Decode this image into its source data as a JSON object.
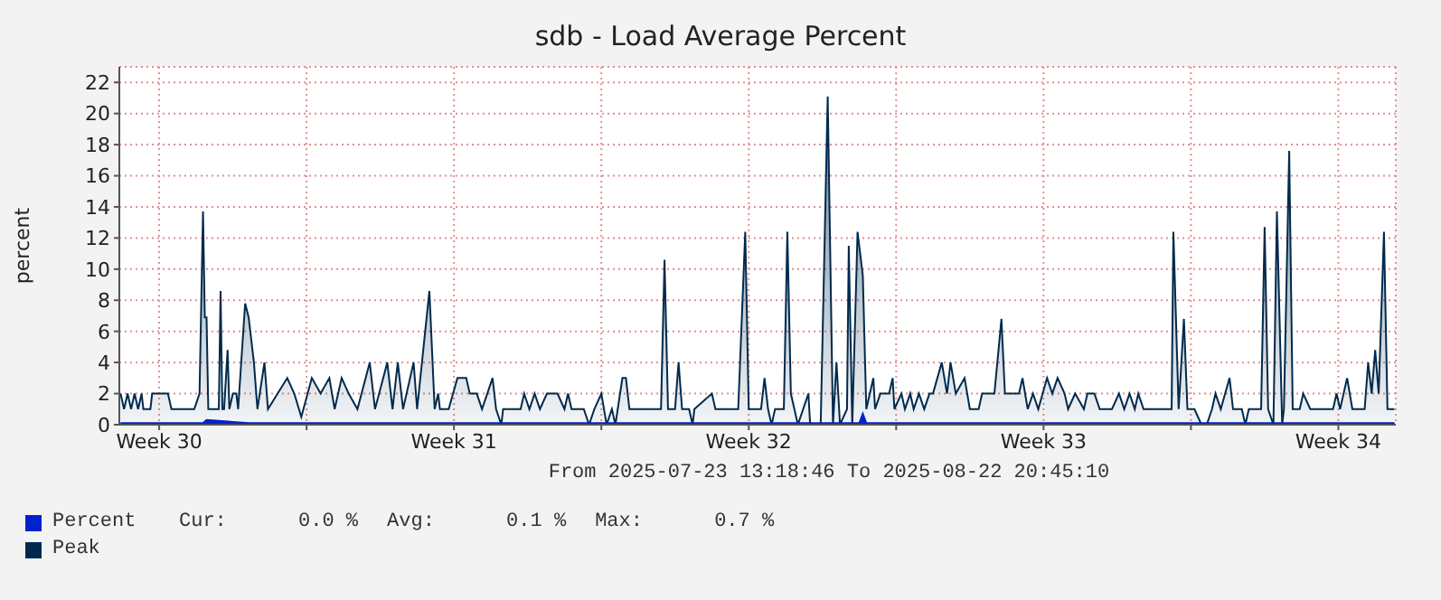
{
  "chart_data": {
    "type": "area",
    "title": "sdb - Load Average Percent",
    "ylabel": "percent",
    "xlabel": "From 2025-07-23 13:18:46 To 2025-08-22 20:45:10",
    "xlim": [
      "2025-07-23T13:18",
      "2025-08-22T20:45"
    ],
    "xticks": [
      {
        "value": "2025-07-24T12:00",
        "label": "Week 30"
      },
      {
        "value": "2025-07-28T00:00",
        "label": null
      },
      {
        "value": "2025-07-31T12:00",
        "label": "Week 31"
      },
      {
        "value": "2025-08-04T00:00",
        "label": null
      },
      {
        "value": "2025-08-07T12:00",
        "label": "Week 32"
      },
      {
        "value": "2025-08-11T00:00",
        "label": null
      },
      {
        "value": "2025-08-14T12:00",
        "label": "Week 33"
      },
      {
        "value": "2025-08-18T00:00",
        "label": null
      },
      {
        "value": "2025-08-21T12:00",
        "label": "Week 34"
      }
    ],
    "ylim": [
      0,
      23
    ],
    "yticks": [
      0,
      2,
      4,
      6,
      8,
      10,
      12,
      14,
      16,
      18,
      20,
      22
    ],
    "grid": true,
    "legend": "bottom",
    "annotations": [
      "Cur:      0.0 %",
      "Avg:      0.1 %",
      "Max:      0.7 %"
    ],
    "series": [
      {
        "name": "Percent",
        "color": "#0022cc",
        "x": [
          "2025-07-23T14:00",
          "2025-07-25T13:00",
          "2025-07-25T15:00",
          "2025-07-26T15:00",
          "2025-08-10T03:00",
          "2025-08-10T05:00",
          "2025-08-10T07:00",
          "2025-08-22T20:00"
        ],
        "values": [
          0.1,
          0.1,
          0.3,
          0.1,
          0.1,
          0.7,
          0.1,
          0.1
        ]
      },
      {
        "name": "Peak",
        "color": "#002a4d",
        "x": [
          "2025-07-23T14:00",
          "2025-07-23T16:00",
          "2025-07-23T18:00",
          "2025-07-23T20:00",
          "2025-07-23T22:00",
          "2025-07-24T00:00",
          "2025-07-24T02:00",
          "2025-07-24T03:00",
          "2025-07-24T07:00",
          "2025-07-24T08:00",
          "2025-07-24T17:00",
          "2025-07-24T19:00",
          "2025-07-25T08:00",
          "2025-07-25T11:00",
          "2025-07-25T13:00",
          "2025-07-25T14:00",
          "2025-07-25T15:00",
          "2025-07-25T16:00",
          "2025-07-25T22:00",
          "2025-07-25T23:00",
          "2025-07-26T00:00",
          "2025-07-26T01:00",
          "2025-07-26T03:00",
          "2025-07-26T04:00",
          "2025-07-26T06:00",
          "2025-07-26T08:00",
          "2025-07-26T09:00",
          "2025-07-26T13:00",
          "2025-07-26T15:00",
          "2025-07-26T18:00",
          "2025-07-26T20:00",
          "2025-07-27T00:00",
          "2025-07-27T02:00",
          "2025-07-27T13:00",
          "2025-07-27T17:00",
          "2025-07-27T21:00",
          "2025-07-28T03:00",
          "2025-07-28T08:00",
          "2025-07-28T13:00",
          "2025-07-28T16:00",
          "2025-07-28T20:00",
          "2025-07-29T00:00",
          "2025-07-29T05:00",
          "2025-07-29T12:00",
          "2025-07-29T15:00",
          "2025-07-29T22:00",
          "2025-07-30T01:00",
          "2025-07-30T04:00",
          "2025-07-30T07:00",
          "2025-07-30T13:00",
          "2025-07-30T15:00",
          "2025-07-30T22:00",
          "2025-07-31T01:00",
          "2025-07-31T03:00",
          "2025-07-31T04:00",
          "2025-07-31T09:00",
          "2025-07-31T14:00",
          "2025-07-31T19:00",
          "2025-07-31T21:00",
          "2025-08-01T01:00",
          "2025-08-01T04:00",
          "2025-08-01T10:00",
          "2025-08-01T12:00",
          "2025-08-01T15:00",
          "2025-08-01T16:00",
          "2025-08-02T02:00",
          "2025-08-02T04:00",
          "2025-08-02T07:00",
          "2025-08-02T10:00",
          "2025-08-02T13:00",
          "2025-08-02T17:00",
          "2025-08-02T23:00",
          "2025-08-03T03:00",
          "2025-08-03T05:00",
          "2025-08-03T07:00",
          "2025-08-03T14:00",
          "2025-08-03T17:00",
          "2025-08-03T20:00",
          "2025-08-04T00:00",
          "2025-08-04T03:00",
          "2025-08-04T06:00",
          "2025-08-04T08:00",
          "2025-08-04T12:00",
          "2025-08-04T14:00",
          "2025-08-04T16:00",
          "2025-08-05T10:00",
          "2025-08-05T12:00",
          "2025-08-05T14:00",
          "2025-08-05T18:00",
          "2025-08-05T20:00",
          "2025-08-05T22:00",
          "2025-08-06T02:00",
          "2025-08-06T04:00",
          "2025-08-06T05:00",
          "2025-08-06T15:00",
          "2025-08-06T17:00",
          "2025-08-07T06:00",
          "2025-08-07T10:00",
          "2025-08-07T12:00",
          "2025-08-07T19:00",
          "2025-08-07T21:00",
          "2025-08-07T23:00",
          "2025-08-08T01:00",
          "2025-08-08T03:00",
          "2025-08-08T08:00",
          "2025-08-08T10:00",
          "2025-08-08T12:00",
          "2025-08-08T14:00",
          "2025-08-08T16:00",
          "2025-08-08T19:00",
          "2025-08-08T22:00",
          "2025-08-08T23:00",
          "2025-08-09T05:00",
          "2025-08-09T09:00",
          "2025-08-09T12:00",
          "2025-08-09T14:00",
          "2025-08-09T16:00",
          "2025-08-09T20:00",
          "2025-08-09T21:00",
          "2025-08-09T23:00",
          "2025-08-10T02:00",
          "2025-08-10T05:00",
          "2025-08-10T07:00",
          "2025-08-10T11:00",
          "2025-08-10T12:00",
          "2025-08-10T15:00",
          "2025-08-10T20:00",
          "2025-08-10T22:00",
          "2025-08-10T23:00",
          "2025-08-11T03:00",
          "2025-08-11T05:00",
          "2025-08-11T08:00",
          "2025-08-11T10:00",
          "2025-08-11T13:00",
          "2025-08-11T16:00",
          "2025-08-11T19:00",
          "2025-08-11T21:00",
          "2025-08-12T02:00",
          "2025-08-12T05:00",
          "2025-08-12T07:00",
          "2025-08-12T10:00",
          "2025-08-12T15:00",
          "2025-08-12T18:00",
          "2025-08-12T23:00",
          "2025-08-13T01:00",
          "2025-08-13T08:00",
          "2025-08-13T12:00",
          "2025-08-13T14:00",
          "2025-08-13T22:00",
          "2025-08-14T00:00",
          "2025-08-14T03:00",
          "2025-08-14T06:00",
          "2025-08-14T09:00",
          "2025-08-14T14:00",
          "2025-08-14T17:00",
          "2025-08-14T20:00",
          "2025-08-15T00:00",
          "2025-08-15T02:00",
          "2025-08-15T06:00",
          "2025-08-15T11:00",
          "2025-08-15T13:00",
          "2025-08-15T17:00",
          "2025-08-15T20:00",
          "2025-08-16T03:00",
          "2025-08-16T07:00",
          "2025-08-16T10:00",
          "2025-08-16T13:00",
          "2025-08-16T16:00",
          "2025-08-16T18:00",
          "2025-08-16T21:00",
          "2025-08-17T13:00",
          "2025-08-17T14:00",
          "2025-08-17T17:00",
          "2025-08-17T20:00",
          "2025-08-17T22:00",
          "2025-08-18T02:00",
          "2025-08-18T06:00",
          "2025-08-18T09:00",
          "2025-08-18T12:00",
          "2025-08-18T14:00",
          "2025-08-18T17:00",
          "2025-08-18T22:00",
          "2025-08-19T00:00",
          "2025-08-19T05:00",
          "2025-08-19T07:00",
          "2025-08-19T09:00",
          "2025-08-19T16:00",
          "2025-08-19T18:00",
          "2025-08-19T20:00",
          "2025-08-19T23:00",
          "2025-08-20T01:00",
          "2025-08-20T04:00",
          "2025-08-20T05:00",
          "2025-08-20T08:00",
          "2025-08-20T10:00",
          "2025-08-20T14:00",
          "2025-08-20T16:00",
          "2025-08-20T20:00",
          "2025-08-21T09:00",
          "2025-08-21T11:00",
          "2025-08-21T13:00",
          "2025-08-21T17:00",
          "2025-08-21T20:00",
          "2025-08-22T03:00",
          "2025-08-22T05:00",
          "2025-08-22T07:00",
          "2025-08-22T09:00",
          "2025-08-22T11:00",
          "2025-08-22T14:00",
          "2025-08-22T16:00",
          "2025-08-22T20:00"
        ],
        "values": [
          2,
          1,
          2,
          1,
          2,
          1,
          2,
          1,
          1,
          2,
          2,
          1,
          1,
          2,
          13.7,
          6.9,
          6.9,
          1,
          1,
          8.6,
          1,
          1,
          4.8,
          1,
          2,
          2,
          1,
          7.8,
          6.9,
          4,
          1,
          4,
          1,
          3,
          2,
          0.5,
          3,
          2,
          3,
          1,
          3,
          2,
          1,
          4,
          1,
          4,
          1,
          4,
          1,
          4,
          1,
          8.6,
          1,
          2,
          1,
          1,
          3,
          3,
          2,
          2,
          1,
          3,
          1,
          0,
          1,
          1,
          2,
          1,
          2,
          1,
          2,
          2,
          1,
          2,
          1,
          1,
          0,
          1,
          2,
          0,
          1,
          0,
          3,
          3,
          1,
          1,
          10.6,
          1,
          1,
          4,
          1,
          1,
          0,
          1,
          2,
          1,
          1,
          12.4,
          1,
          1,
          3,
          1,
          0,
          1,
          1,
          12.4,
          2,
          1,
          0,
          1,
          2,
          0,
          0,
          21.1,
          0,
          4,
          0,
          1,
          11.5,
          0,
          12.4,
          9.6,
          1,
          3,
          1,
          2,
          2,
          3,
          1,
          2,
          1,
          2,
          1,
          2,
          1,
          2,
          2,
          4,
          2,
          4,
          2,
          3,
          1,
          1,
          2,
          2,
          6.8,
          2,
          2,
          3,
          1,
          2,
          1,
          3,
          2,
          3,
          2,
          1,
          2,
          1,
          2,
          2,
          1,
          1,
          2,
          1,
          2,
          1,
          2,
          1,
          1,
          12.4,
          1,
          6.8,
          1,
          1,
          0,
          0,
          1,
          2,
          1,
          3,
          1,
          1,
          0,
          1,
          1,
          12.7,
          1,
          0,
          13.7,
          0,
          1,
          17.6,
          1,
          1,
          2,
          1,
          1,
          2,
          1,
          3,
          1,
          1,
          4,
          2,
          4.8,
          2,
          12.4,
          1,
          1
        ]
      }
    ]
  }
}
